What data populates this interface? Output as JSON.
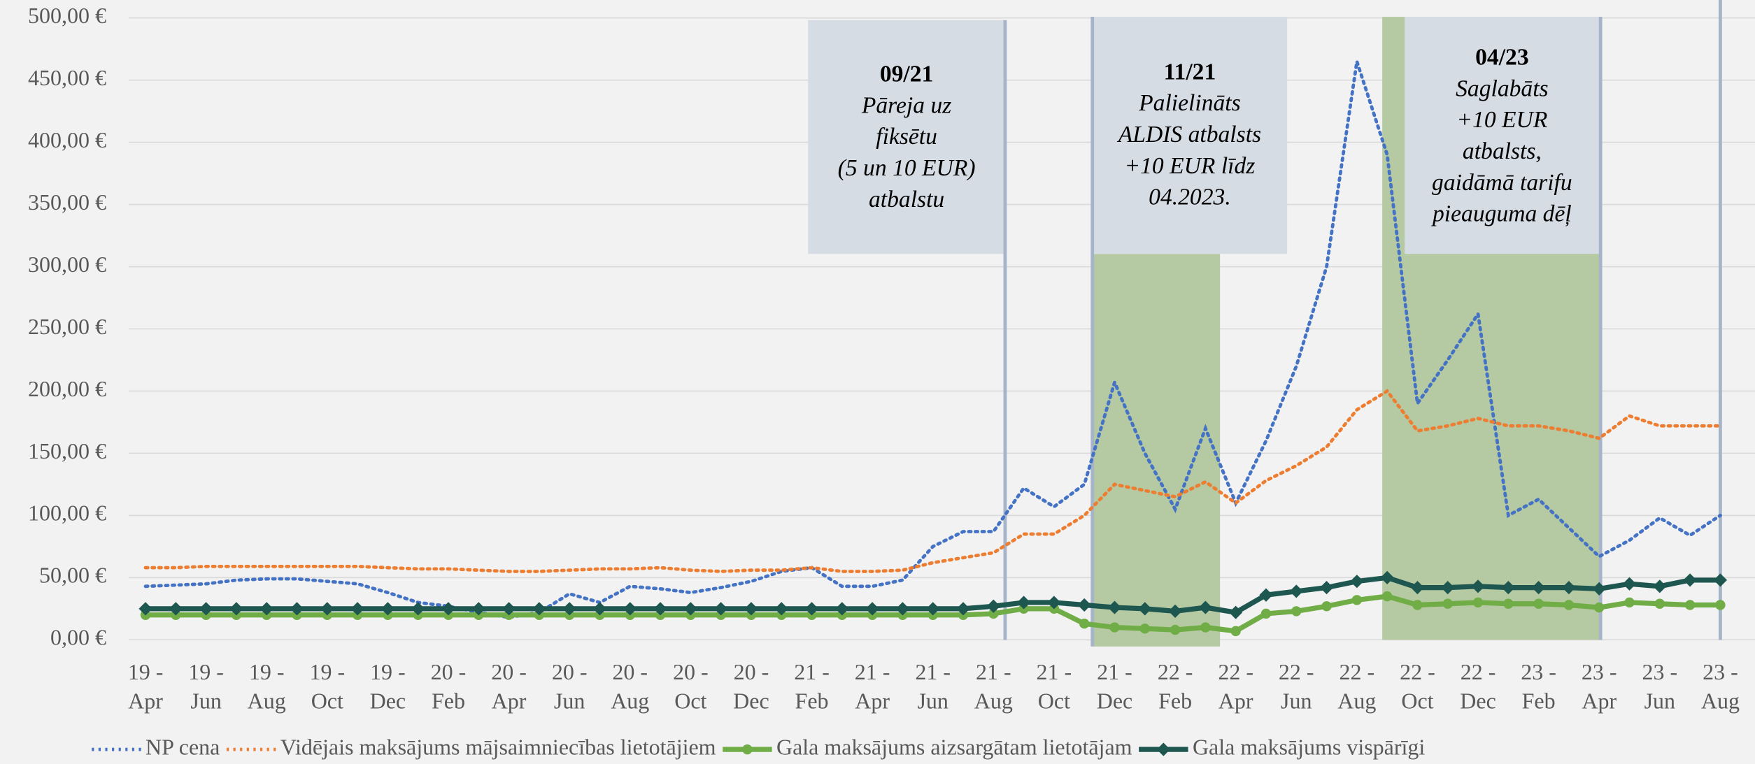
{
  "chart_data": {
    "type": "line",
    "categories": [
      "19 - Apr",
      null,
      "19 - Jun",
      null,
      "19 - Aug",
      null,
      "19 - Oct",
      null,
      "19 - Dec",
      null,
      "20 - Feb",
      null,
      "20 - Apr",
      null,
      "20 - Jun",
      null,
      "20 - Aug",
      null,
      "20 - Oct",
      null,
      "20 - Dec",
      null,
      "21 - Feb",
      null,
      "21 - Apr",
      null,
      "21 - Jun",
      null,
      "21 - Aug",
      null,
      "21 - Oct",
      null,
      "21 - Dec",
      null,
      "22 - Feb",
      null,
      "22 - Apr",
      null,
      "22 - Jun",
      null,
      "22 - Aug",
      null,
      "22 - Oct",
      null,
      "22 - Dec",
      null,
      "23 - Feb",
      null,
      "23 - Apr",
      null,
      "23 - Jun",
      null,
      "23 - Aug"
    ],
    "series": [
      {
        "name": "NP cena",
        "color": "#4472c4",
        "dash": "dotted",
        "marker": null,
        "values": [
          43,
          44,
          45,
          48,
          49,
          49,
          47,
          45,
          38,
          30,
          27,
          22,
          18,
          22,
          37,
          30,
          43,
          41,
          38,
          42,
          47,
          55,
          58,
          43,
          43,
          48,
          75,
          87,
          87,
          122,
          107,
          125,
          207,
          150,
          105,
          170,
          110,
          160,
          220,
          300,
          465,
          390,
          190,
          225,
          262,
          100,
          113,
          90,
          67,
          80,
          98,
          84,
          100
        ]
      },
      {
        "name": "Vidējais maksājums mājsaimniecības lietotājiem",
        "color": "#ed7d31",
        "dash": "dotted",
        "marker": null,
        "values": [
          58,
          58,
          59,
          59,
          59,
          59,
          59,
          59,
          58,
          57,
          57,
          56,
          55,
          55,
          56,
          57,
          57,
          58,
          56,
          55,
          56,
          56,
          58,
          55,
          55,
          56,
          62,
          66,
          70,
          85,
          85,
          100,
          125,
          120,
          115,
          127,
          110,
          128,
          140,
          155,
          185,
          200,
          168,
          172,
          178,
          172,
          172,
          168,
          162,
          180,
          172,
          172,
          172
        ]
      },
      {
        "name": "Gala maksājums aizsargātam lietotājam",
        "color": "#70ad47",
        "dash": "solid",
        "marker": "circle",
        "values": [
          20,
          20,
          20,
          20,
          20,
          20,
          20,
          20,
          20,
          20,
          20,
          20,
          20,
          20,
          20,
          20,
          20,
          20,
          20,
          20,
          20,
          20,
          20,
          20,
          20,
          20,
          20,
          20,
          21,
          25,
          25,
          13,
          10,
          9,
          8,
          10,
          7,
          21,
          23,
          27,
          32,
          35,
          28,
          29,
          30,
          29,
          29,
          28,
          26,
          30,
          29,
          28,
          28
        ]
      },
      {
        "name": "Gala maksājums vispārīgi",
        "color": "#1e5650",
        "dash": "solid",
        "marker": "diamond",
        "values": [
          25,
          25,
          25,
          25,
          25,
          25,
          25,
          25,
          25,
          25,
          25,
          25,
          25,
          25,
          25,
          25,
          25,
          25,
          25,
          25,
          25,
          25,
          25,
          25,
          25,
          25,
          25,
          25,
          27,
          30,
          30,
          28,
          26,
          25,
          23,
          26,
          22,
          36,
          39,
          42,
          47,
          50,
          42,
          42,
          43,
          42,
          42,
          42,
          41,
          45,
          43,
          48,
          48
        ]
      }
    ],
    "ylim": [
      0,
      500
    ],
    "yticks": [
      {
        "value": 0,
        "label": "0,00 €"
      },
      {
        "value": 50,
        "label": "50,00 €"
      },
      {
        "value": 100,
        "label": "100,00 €"
      },
      {
        "value": 150,
        "label": "150,00 €"
      },
      {
        "value": 200,
        "label": "200,00 €"
      },
      {
        "value": 250,
        "label": "250,00 €"
      },
      {
        "value": 300,
        "label": "300,00 €"
      },
      {
        "value": 350,
        "label": "350,00 €"
      },
      {
        "value": 400,
        "label": "400,00 €"
      },
      {
        "value": 450,
        "label": "450,00 €"
      },
      {
        "value": 500,
        "label": "500,00 €"
      }
    ],
    "grid": true,
    "legend": "bottom",
    "annotations": [
      {
        "title": "09/21",
        "lines": [
          "Pāreja uz",
          "fiksētu",
          "(5 un 10 EUR)",
          "atbalstu"
        ]
      },
      {
        "title": "11/21",
        "lines": [
          "Palielināts",
          "ALDIS atbalsts",
          "+10 EUR līdz",
          "04.2023."
        ]
      },
      {
        "title": "04/23",
        "lines": [
          "Saglabāts",
          "+10 EUR",
          "atbalsts,",
          "gaidāmā tarifu",
          "pieauguma dēļ"
        ]
      }
    ]
  }
}
